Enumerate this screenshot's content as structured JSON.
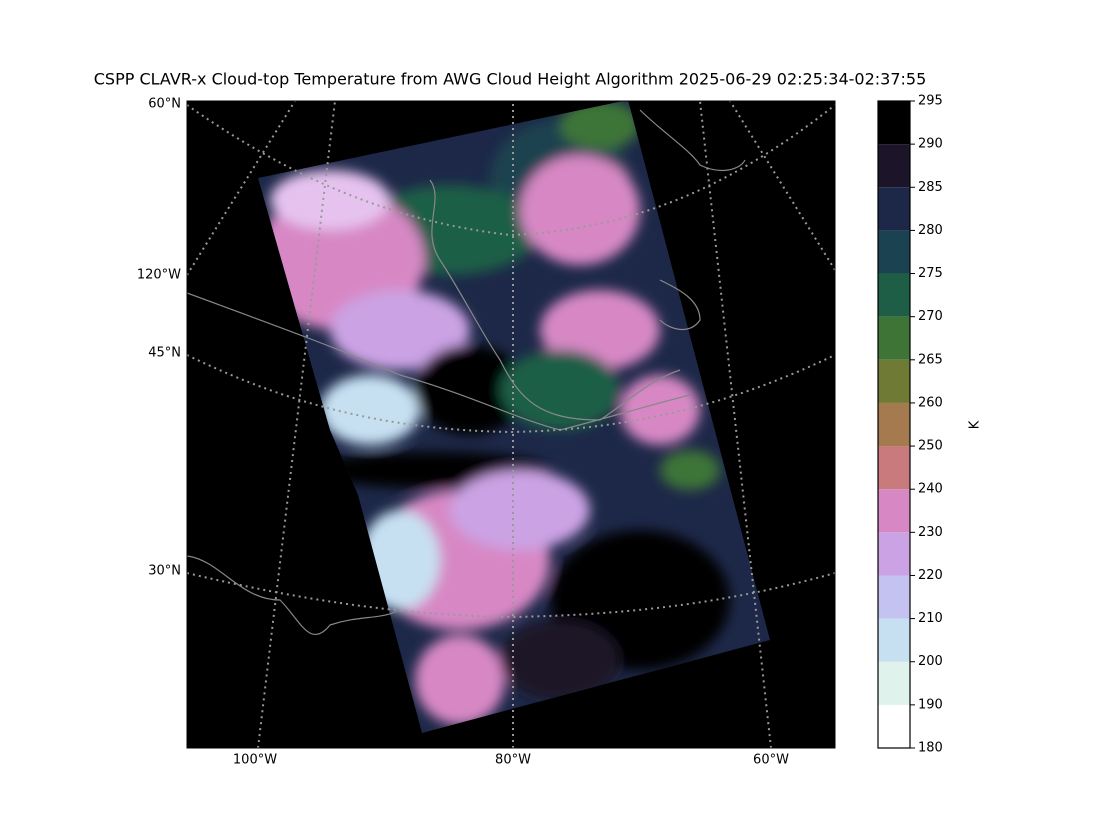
{
  "title": "CSPP CLAVR-x Cloud-top Temperature from AWG Cloud Height Algorithm 2025-06-29 02:25:34-02:37:55",
  "map": {
    "lat_labels": [
      "60°N",
      "45°N",
      "30°N"
    ],
    "lon_labels": [
      "120°W",
      "100°W",
      "80°W",
      "60°W"
    ]
  },
  "colorbar": {
    "label": "K",
    "ticks": [
      180,
      190,
      200,
      210,
      220,
      230,
      240,
      250,
      260,
      265,
      270,
      275,
      280,
      285,
      290,
      295
    ],
    "colors": [
      "#ffffff",
      "#dff3ec",
      "#c6e0f2",
      "#c4c2f0",
      "#cba3e4",
      "#d788c4",
      "#c87a7c",
      "#a57a4f",
      "#6f7a35",
      "#3e7537",
      "#1f5e46",
      "#1b4250",
      "#1d2848",
      "#1c1428",
      "#000000"
    ]
  }
}
